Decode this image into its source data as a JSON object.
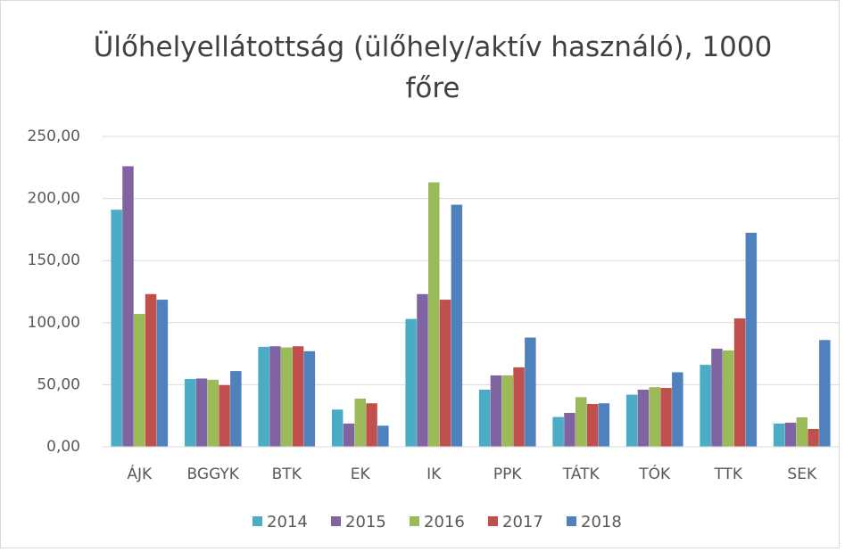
{
  "chart_data": {
    "type": "bar",
    "title": "Ülőhelyellátottság (ülőhely/aktív használó), 1000 főre",
    "categories": [
      "ÁJK",
      "BGGYK",
      "BTK",
      "EK",
      "IK",
      "PPK",
      "TÁTK",
      "TÓK",
      "TTK",
      "SEK"
    ],
    "series": [
      {
        "name": "2014",
        "color": "#4bacc6",
        "values": [
          191,
          54.6,
          80.5,
          30,
          103,
          46,
          24,
          42,
          66,
          18.7
        ]
      },
      {
        "name": "2015",
        "color": "#8064a2",
        "values": [
          226,
          55,
          81,
          18.7,
          123,
          57.5,
          27.3,
          46,
          79,
          19.4
        ]
      },
      {
        "name": "2016",
        "color": "#9bbb59",
        "values": [
          107,
          54,
          80,
          38.8,
          213,
          57.5,
          40,
          48,
          77.6,
          23.7
        ]
      },
      {
        "name": "2017",
        "color": "#c0504d",
        "values": [
          123,
          49.6,
          81,
          35,
          118.5,
          64,
          34.5,
          47.4,
          103.4,
          14.4
        ]
      },
      {
        "name": "2018",
        "color": "#4f81bd",
        "values": [
          118.5,
          61,
          77,
          17,
          195,
          88,
          35,
          60,
          172.4,
          86
        ]
      }
    ],
    "ylim": [
      0,
      250
    ],
    "yticks": [
      {
        "value": 0,
        "label": "0,00"
      },
      {
        "value": 50,
        "label": "50,00"
      },
      {
        "value": 100,
        "label": "100,00"
      },
      {
        "value": 150,
        "label": "150,00"
      },
      {
        "value": 200,
        "label": "200,00"
      },
      {
        "value": 250,
        "label": "250,00"
      }
    ],
    "grid": true,
    "legend": "bottom"
  }
}
